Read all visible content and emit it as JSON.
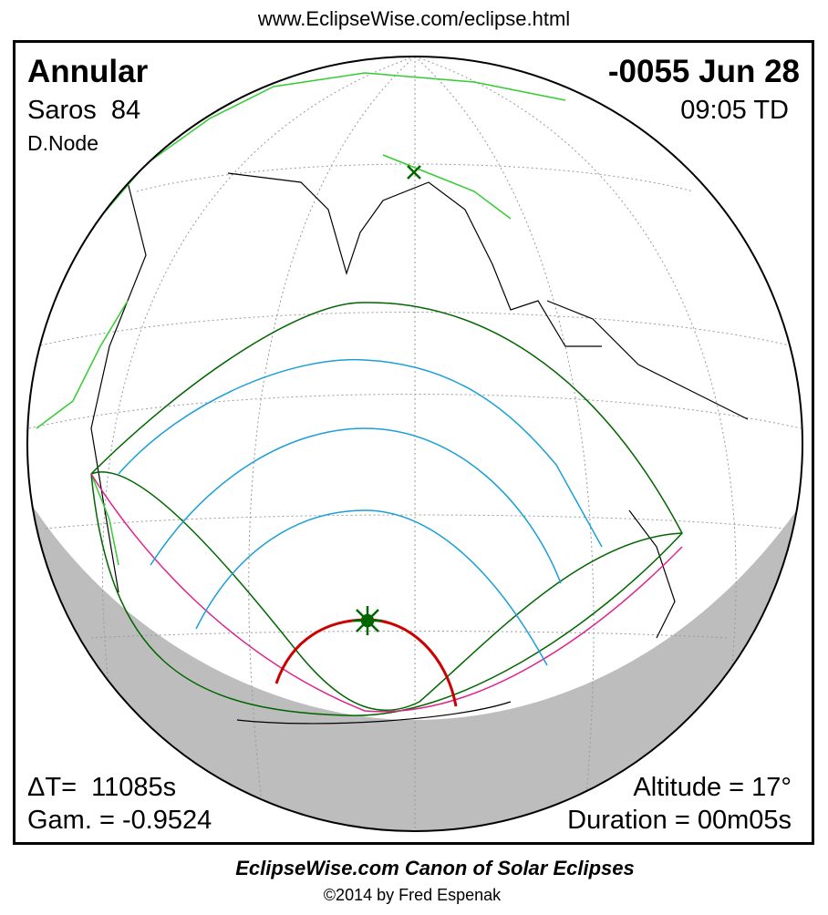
{
  "header": {
    "url": "www.EclipseWise.com/eclipse.html"
  },
  "info": {
    "type": "Annular",
    "saros": "Saros  84",
    "node": "D.Node",
    "date": "-0055 Jun 28",
    "time": "09:05 TD",
    "delta_t": "ΔT=  11085s",
    "gamma": "Gam. = -0.9524",
    "altitude": "Altitude = 17°",
    "duration": "Duration = 00m05s"
  },
  "footer": {
    "title": "EclipseWise.com Canon of Solar Eclipses",
    "credit": "©2014 by Fred Espenak"
  }
}
